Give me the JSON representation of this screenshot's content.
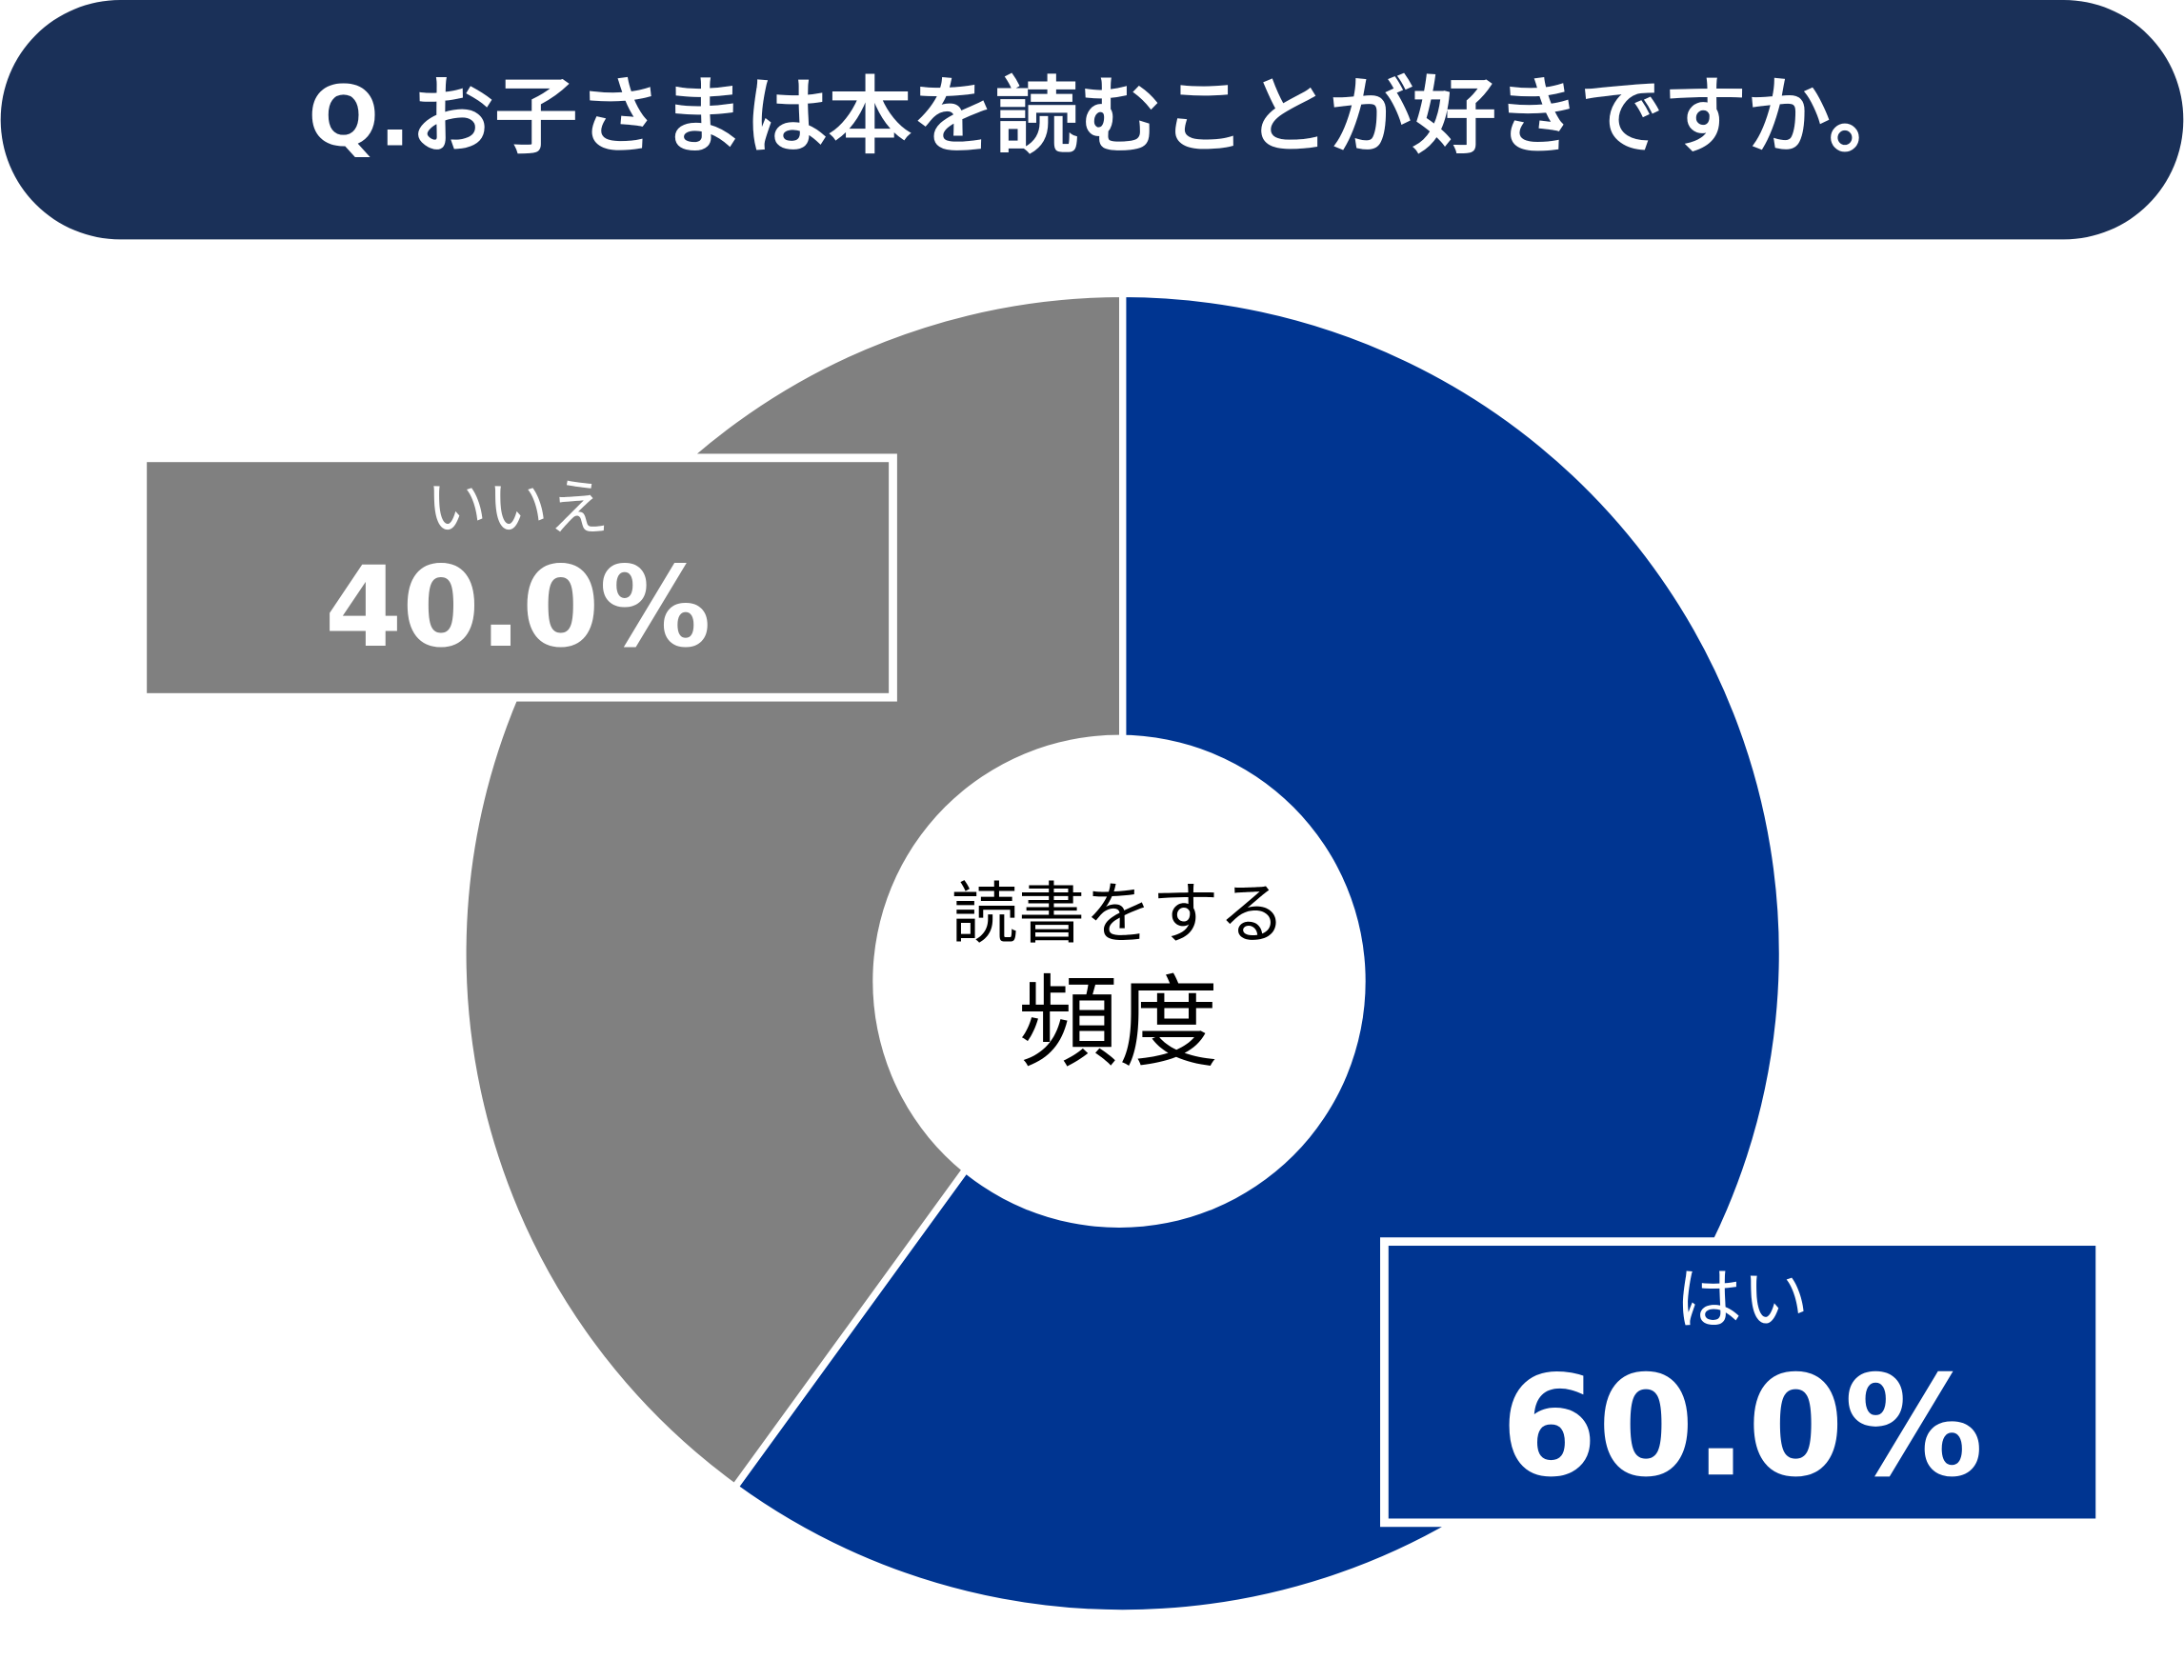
{
  "chart_data": {
    "type": "donut",
    "title": "Q.お子さまは本を読むことが好きですか。",
    "center_label": [
      "読書をする",
      "頻度"
    ],
    "categories": [
      "はい",
      "いいえ"
    ],
    "values": [
      60,
      40
    ],
    "value_labels": [
      "60.0%",
      "40.0%"
    ],
    "colors": [
      "#003591",
      "#808080"
    ]
  }
}
